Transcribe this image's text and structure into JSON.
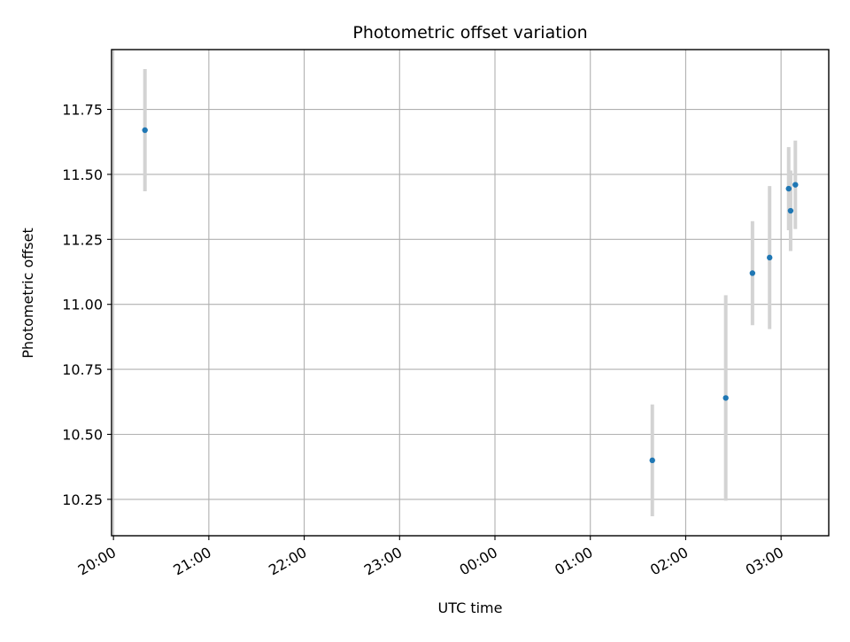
{
  "chart_data": {
    "type": "scatter",
    "title": "Photometric offset variation",
    "xlabel": "UTC time",
    "ylabel": "Photometric offset",
    "x_ticks": [
      "20:00",
      "21:00",
      "22:00",
      "23:00",
      "00:00",
      "01:00",
      "02:00",
      "03:00"
    ],
    "y_ticks": [
      "10.25",
      "10.50",
      "10.75",
      "11.00",
      "11.25",
      "11.50",
      "11.75"
    ],
    "y_tick_values": [
      10.25,
      10.5,
      10.75,
      11.0,
      11.25,
      11.5,
      11.75
    ],
    "xlim_hours": [
      -0.02,
      7.5
    ],
    "ylim": [
      10.11,
      11.98
    ],
    "grid": true,
    "colors": {
      "marker": "#1f77b4",
      "errorbar": "#d3d3d3",
      "grid": "#b0b0b0"
    },
    "points": [
      {
        "time": "20:20",
        "t_hours": 0.33,
        "y": 11.67,
        "err": 0.235
      },
      {
        "time": "01:39",
        "t_hours": 5.65,
        "y": 10.4,
        "err": 0.215
      },
      {
        "time": "02:26",
        "t_hours": 6.42,
        "y": 10.64,
        "err": 0.395
      },
      {
        "time": "02:42",
        "t_hours": 6.7,
        "y": 11.12,
        "err": 0.2
      },
      {
        "time": "02:53",
        "t_hours": 6.88,
        "y": 11.18,
        "err": 0.275
      },
      {
        "time": "03:05",
        "t_hours": 7.08,
        "y": 11.445,
        "err": 0.16
      },
      {
        "time": "03:06",
        "t_hours": 7.1,
        "y": 11.36,
        "err": 0.155
      },
      {
        "time": "03:09",
        "t_hours": 7.15,
        "y": 11.46,
        "err": 0.17
      }
    ]
  }
}
